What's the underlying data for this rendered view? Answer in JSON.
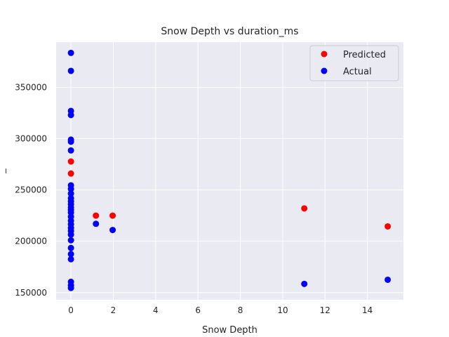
{
  "chart_data": {
    "type": "scatter",
    "title": "Snow Depth vs duration_ms",
    "xlabel": "Snow Depth",
    "ylabel": "_",
    "xlim": [
      -0.7,
      15.7
    ],
    "ylim": [
      143000,
      394000
    ],
    "xticks": [
      0,
      2,
      4,
      6,
      8,
      10,
      12,
      14
    ],
    "yticks": [
      150000,
      200000,
      250000,
      300000,
      350000
    ],
    "grid": true,
    "legend_position": "top-right",
    "series": [
      {
        "name": "Predicted",
        "color": "#ff0000",
        "points": [
          [
            0,
            277700
          ],
          [
            0,
            266000
          ],
          [
            1.18,
            225000
          ],
          [
            1.97,
            225000
          ],
          [
            11.02,
            232000
          ],
          [
            14.96,
            214500
          ]
        ]
      },
      {
        "name": "Actual",
        "color": "#0000ff",
        "points": [
          [
            0,
            383500
          ],
          [
            0,
            366000
          ],
          [
            0,
            327000
          ],
          [
            0,
            323000
          ],
          [
            0,
            299000
          ],
          [
            0,
            297000
          ],
          [
            0,
            288500
          ],
          [
            0,
            254500
          ],
          [
            0,
            251000
          ],
          [
            0,
            246500
          ],
          [
            0,
            242000
          ],
          [
            0,
            239000
          ],
          [
            0,
            236000
          ],
          [
            0,
            233000
          ],
          [
            0,
            230500
          ],
          [
            0,
            228000
          ],
          [
            0,
            224000
          ],
          [
            0,
            220000
          ],
          [
            0,
            216500
          ],
          [
            0,
            213000
          ],
          [
            0,
            210000
          ],
          [
            0,
            206500
          ],
          [
            0,
            201000
          ],
          [
            0,
            193500
          ],
          [
            0,
            187500
          ],
          [
            0,
            182500
          ],
          [
            0,
            160500
          ],
          [
            0,
            157000
          ],
          [
            0,
            154500
          ],
          [
            1.18,
            217000
          ],
          [
            1.97,
            211000
          ],
          [
            11.02,
            158500
          ],
          [
            14.96,
            162500
          ]
        ]
      }
    ]
  }
}
